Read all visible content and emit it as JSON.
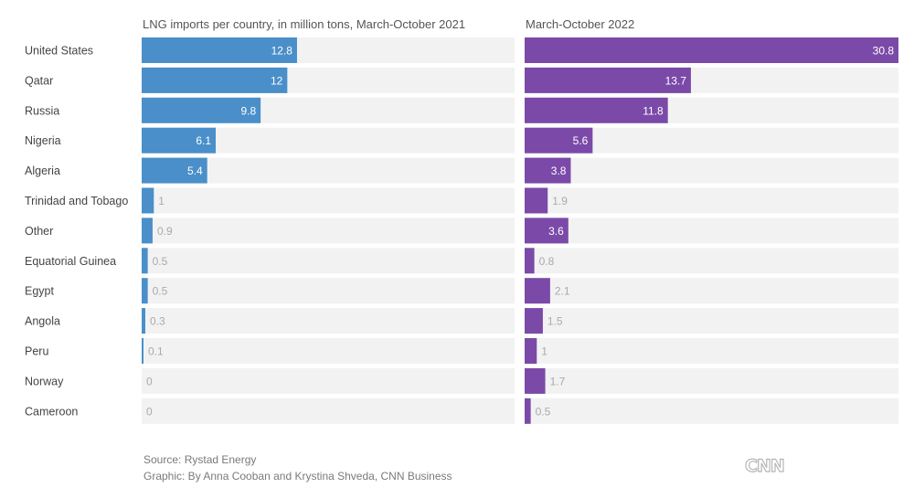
{
  "chart_data": {
    "type": "bar",
    "orientation": "horizontal",
    "categories": [
      "United States",
      "Qatar",
      "Russia",
      "Nigeria",
      "Algeria",
      "Trinidad and Tobago",
      "Other",
      "Equatorial Guinea",
      "Egypt",
      "Angola",
      "Peru",
      "Norway",
      "Cameroon"
    ],
    "series": [
      {
        "name": "LNG imports per country, in million tons, March-October 2021",
        "color": "#4a8fc9",
        "values": [
          12.8,
          12,
          9.8,
          6.1,
          5.4,
          1,
          0.9,
          0.5,
          0.5,
          0.3,
          0.1,
          0,
          0
        ]
      },
      {
        "name": "March-October 2022",
        "color": "#7b4aa8",
        "values": [
          30.8,
          13.7,
          11.8,
          5.6,
          3.8,
          1.9,
          3.6,
          0.8,
          2.1,
          1.5,
          1,
          1.7,
          0.5
        ]
      }
    ],
    "xlim": [
      0,
      30.8
    ],
    "grid": false,
    "legend": "none"
  },
  "footer": {
    "source": "Source: Rystad Energy",
    "credit": "Graphic: By Anna Cooban and Krystina Shveda, CNN Business",
    "logo": "CNN"
  },
  "colors": {
    "track": "#f2f2f2",
    "label_outside": "#aaaaaa"
  }
}
